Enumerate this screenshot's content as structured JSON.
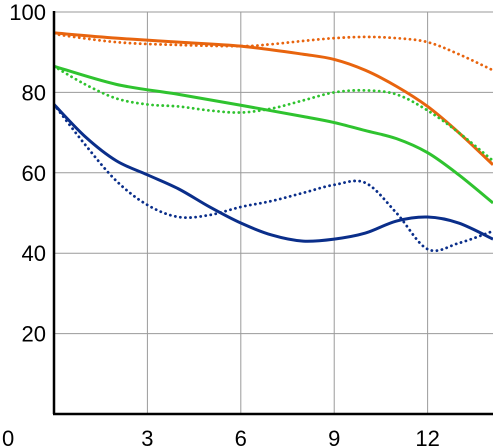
{
  "chart_data": {
    "type": "line",
    "title": "",
    "xlabel": "",
    "ylabel": "",
    "xlim": [
      0,
      14.1
    ],
    "ylim": [
      0,
      100
    ],
    "x_ticks": [
      0,
      3,
      6,
      9,
      12
    ],
    "x_tick_labels": [
      "0",
      "3",
      "6",
      "9",
      "12"
    ],
    "y_ticks": [
      20,
      40,
      60,
      80,
      100
    ],
    "y_tick_labels": [
      "20",
      "40",
      "60",
      "80",
      "100"
    ],
    "grid": true,
    "legend": "none",
    "series": [
      {
        "color": "#e8640e",
        "style": "solid",
        "x": [
          0,
          2,
          4,
          6,
          8,
          9,
          10,
          11,
          12,
          13,
          14.1
        ],
        "y": [
          94.8,
          93.5,
          92.5,
          91.5,
          89.5,
          88.2,
          85.5,
          81.5,
          76.5,
          70,
          62
        ]
      },
      {
        "color": "#e8640e",
        "style": "dotted",
        "x": [
          0,
          2,
          4,
          6,
          7,
          8,
          9,
          10,
          11,
          12,
          13,
          14.1
        ],
        "y": [
          94.5,
          92.5,
          91.8,
          91.5,
          92,
          92.8,
          93.5,
          93.8,
          93.5,
          92.5,
          89.5,
          85.5
        ]
      },
      {
        "color": "#2fc32f",
        "style": "solid",
        "x": [
          0,
          2,
          4,
          6,
          8,
          9,
          10,
          11,
          12,
          13,
          14.1
        ],
        "y": [
          86.5,
          82,
          79.5,
          76.8,
          74,
          72.5,
          70.5,
          68.5,
          65,
          59.5,
          52.5
        ]
      },
      {
        "color": "#2fc32f",
        "style": "dotted",
        "x": [
          0,
          1,
          2,
          3,
          4,
          5,
          6,
          7,
          8,
          9,
          10,
          11,
          12,
          13,
          14.1
        ],
        "y": [
          86.5,
          82,
          78.5,
          77,
          76.5,
          75.5,
          75,
          76,
          78,
          80,
          80.5,
          79.5,
          75.5,
          70,
          63
        ]
      },
      {
        "color": "#0a2e8a",
        "style": "solid",
        "x": [
          0,
          1,
          2,
          3,
          4,
          5,
          6,
          7,
          8,
          9,
          10,
          11,
          12,
          13,
          14.1
        ],
        "y": [
          77,
          69,
          63,
          59.5,
          56,
          51.5,
          47.5,
          44.5,
          43,
          43.5,
          45,
          48,
          49,
          47.5,
          43.5
        ]
      },
      {
        "color": "#0a2e8a",
        "style": "dotted",
        "x": [
          0,
          1,
          2,
          3,
          4,
          5,
          6,
          7,
          8,
          9,
          10,
          11,
          12,
          13,
          14.1
        ],
        "y": [
          77,
          67,
          58,
          52,
          49,
          49.5,
          51.5,
          53,
          55,
          57,
          57.5,
          50,
          41,
          42.5,
          45.5
        ]
      }
    ]
  }
}
